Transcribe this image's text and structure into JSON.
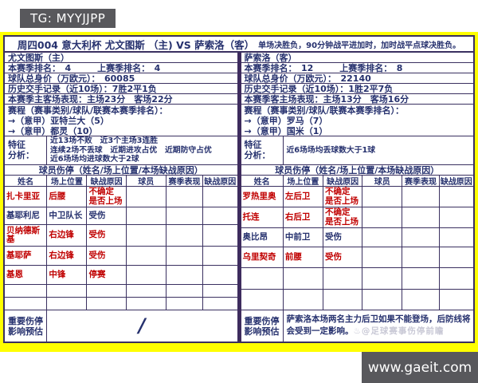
{
  "page": {
    "tg_badge": "TG: MYYJJPP",
    "website": "www.gaeit.com"
  },
  "colors": {
    "frame_yellow": "#ffff00",
    "text_navy": "#26316e",
    "text_red": "#c00000",
    "divider_purple": "#3e2c5e",
    "badge_gray": "#58585c",
    "watermark_gray": "#c9c9d6"
  },
  "title": {
    "main": "周四004 意大利杯 尤文图斯 （主) VS 萨索洛（客）",
    "sub": "单场决胜负，90分钟战平进加时，加时战平点球决胜负。"
  },
  "teams": [
    {
      "side": "home",
      "name": "尤文图斯（主）",
      "info_rows": [
        "本赛季排名：　4　　　上赛季排名：　4",
        "球队总身价（万欧元）：　60085",
        "历史交手记录（近10场）：7胜2平1负",
        "本赛季主客场表现：主场23分　客场22分"
      ],
      "schedule": {
        "header": "赛程（赛事类别/球队/联赛本赛季排名）：",
        "items": [
          "→（意甲）亚特兰大（5）",
          "→（意甲）都灵（10）"
        ]
      },
      "feature": {
        "label": "特征\n分析：",
        "lines": [
          "近13场不败　近3个主场3连胜",
          "连续2场不丢球　近期进攻占优　近期防守占优",
          "近6场场均进球数大于2球"
        ]
      },
      "injury": {
        "title": "球员伤停（姓名/场上位置/本场缺战原因）",
        "columns": [
          "姓名",
          "场上位置",
          "缺战原因",
          "球员",
          "赛季表现",
          "缺战原因"
        ],
        "rows": [
          {
            "name": "扎卡里亚",
            "position": "后腰",
            "reason": "不确定\n是否上场",
            "red": true
          },
          {
            "name": "基耶利尼",
            "position": "中卫队长",
            "reason": "受伤",
            "red": false
          },
          {
            "name": "贝纳德斯基",
            "position": "右边锋",
            "reason": "受伤",
            "red": true
          },
          {
            "name": "基耶萨",
            "position": "右边锋",
            "reason": "受伤",
            "red": true
          },
          {
            "name": "基恩",
            "position": "中锋",
            "reason": "停赛",
            "red": true
          },
          {
            "name": "",
            "position": "",
            "reason": "",
            "red": false
          },
          {
            "name": "",
            "position": "",
            "reason": "",
            "red": false
          }
        ]
      },
      "important": {
        "label": "重要伤停\n影响预估",
        "text": "/",
        "is_slash": true,
        "watermark": ""
      }
    },
    {
      "side": "away",
      "name": "萨索洛（客）",
      "info_rows": [
        "本赛季排名：　12　　　上赛季排名：　8",
        "球队总身价（万欧元）：　22140",
        "历史交手记录（近10场）：1胜2平7负",
        "本赛季客主场表现：主场13分　客场16分"
      ],
      "schedule": {
        "header": "赛程（赛事类别/球队/联赛本赛季排名）：",
        "items": [
          "→（意甲）罗马（7）",
          "→（意甲）国米（1）"
        ]
      },
      "feature": {
        "label": "特征\n分析：",
        "lines": [
          "近6场场均丢球数大于1球"
        ]
      },
      "injury": {
        "title": "球员伤停（姓名/场上位置/本场缺战原因）",
        "columns": [
          "姓名",
          "场上位置",
          "缺战原因",
          "球员",
          "赛季表现",
          "缺战原因"
        ],
        "rows": [
          {
            "name": "罗热里奥",
            "position": "左后卫",
            "reason": "不确定\n是否上场",
            "red": true
          },
          {
            "name": "托连",
            "position": "右后卫",
            "reason": "不确定\n是否上场",
            "red": true
          },
          {
            "name": "奥比昂",
            "position": "中前卫",
            "reason": "受伤",
            "red": false
          },
          {
            "name": "乌里契奇",
            "position": "前腰",
            "reason": "受伤",
            "red": true
          },
          {
            "name": "",
            "position": "",
            "reason": "",
            "red": false
          },
          {
            "name": "",
            "position": "",
            "reason": "",
            "red": false
          }
        ]
      },
      "important": {
        "label": "重要伤停\n影响预估",
        "text": "萨索洛本场两名主力后卫如果不能登场，后防线将会受到一定影响。",
        "is_slash": false,
        "watermark": "♨@足球赛事伤停前瞻"
      }
    }
  ]
}
